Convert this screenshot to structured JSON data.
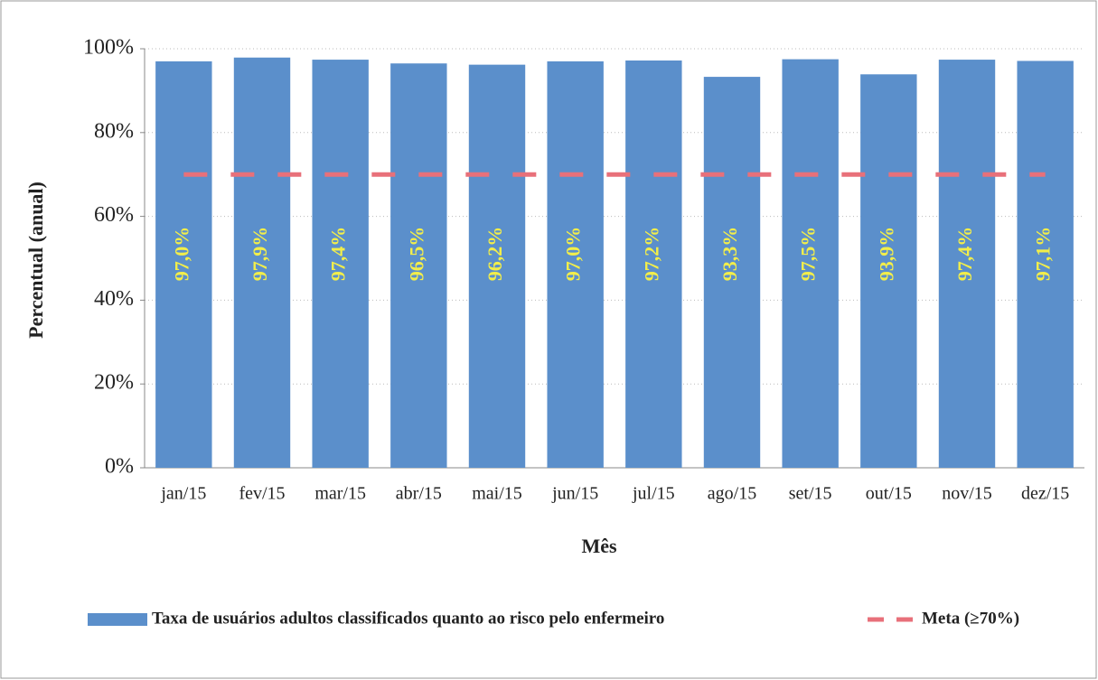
{
  "chart_data": {
    "type": "bar",
    "categories": [
      "jan/15",
      "fev/15",
      "mar/15",
      "abr/15",
      "mai/15",
      "jun/15",
      "jul/15",
      "ago/15",
      "set/15",
      "out/15",
      "nov/15",
      "dez/15"
    ],
    "series": [
      {
        "name": "Taxa de usuários adultos classificados quanto ao risco pelo enfermeiro",
        "type": "bar",
        "color": "#5b8fcb",
        "values": [
          97.0,
          97.9,
          97.4,
          96.5,
          96.2,
          97.0,
          97.2,
          93.3,
          97.5,
          93.9,
          97.4,
          97.1
        ],
        "value_labels": [
          "97,0%",
          "97,9%",
          "97,4%",
          "96,5%",
          "96,2%",
          "97,0%",
          "97,2%",
          "93,3%",
          "97,5%",
          "93,9%",
          "97,4%",
          "97,1%"
        ],
        "label_color": "#f2ee4a"
      },
      {
        "name": "Meta (≥70%)",
        "type": "line",
        "color": "#e8707a",
        "dashed": true,
        "values": [
          70,
          70,
          70,
          70,
          70,
          70,
          70,
          70,
          70,
          70,
          70,
          70
        ]
      }
    ],
    "xlabel": "Mês",
    "ylabel": "Percentual (anual)",
    "ylim": [
      0,
      100
    ],
    "yticks": [
      {
        "value": 0,
        "label": "0%"
      },
      {
        "value": 20,
        "label": "20%"
      },
      {
        "value": 40,
        "label": "40%"
      },
      {
        "value": 60,
        "label": "60%"
      },
      {
        "value": 80,
        "label": "80%"
      },
      {
        "value": 100,
        "label": "100%"
      }
    ],
    "grid": true,
    "legend": "bottom"
  }
}
